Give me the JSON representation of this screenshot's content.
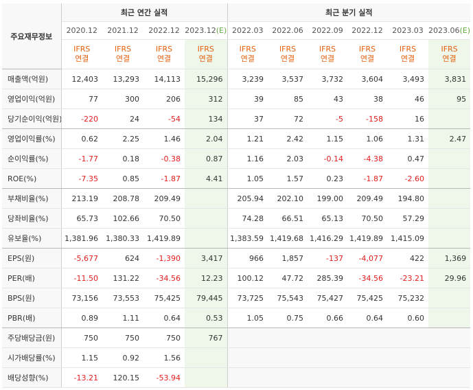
{
  "corner_label": "주요재무정보",
  "groups": {
    "annual": "최근 연간 실적",
    "quarterly": "최근 분기 실적"
  },
  "periods": {
    "annual": [
      "2020.12",
      "2021.12",
      "2022.12",
      "2023.12"
    ],
    "quarterly": [
      "2022.03",
      "2022.06",
      "2022.09",
      "2022.12",
      "2023.03",
      "2023.06"
    ]
  },
  "estimate_mark": "(E)",
  "ifrs_line1": "IFRS",
  "ifrs_line2": "연결",
  "rows": [
    {
      "label": "매출액(억원)",
      "annual": [
        "12,403",
        "13,293",
        "14,113",
        "15,296"
      ],
      "quarterly": [
        "3,239",
        "3,537",
        "3,732",
        "3,604",
        "3,493",
        "3,831"
      ]
    },
    {
      "label": "영업이익(억원)",
      "annual": [
        "77",
        "300",
        "206",
        "312"
      ],
      "quarterly": [
        "39",
        "85",
        "43",
        "38",
        "46",
        "95"
      ]
    },
    {
      "label": "당기순이익(억원)",
      "annual": [
        "-220",
        "24",
        "-54",
        "134"
      ],
      "quarterly": [
        "37",
        "72",
        "-5",
        "-158",
        "16",
        ""
      ]
    },
    {
      "label": "영업이익률(%)",
      "annual": [
        "0.62",
        "2.25",
        "1.46",
        "2.04"
      ],
      "quarterly": [
        "1.21",
        "2.42",
        "1.15",
        "1.06",
        "1.31",
        "2.47"
      ]
    },
    {
      "label": "순이익률(%)",
      "annual": [
        "-1.77",
        "0.18",
        "-0.38",
        "0.87"
      ],
      "quarterly": [
        "1.16",
        "2.03",
        "-0.14",
        "-4.38",
        "0.47",
        ""
      ]
    },
    {
      "label": "ROE(%)",
      "annual": [
        "-7.35",
        "0.85",
        "-1.87",
        "4.41"
      ],
      "quarterly": [
        "1.05",
        "1.57",
        "0.23",
        "-1.87",
        "-2.60",
        ""
      ]
    },
    {
      "label": "부채비율(%)",
      "annual": [
        "213.19",
        "208.78",
        "209.49",
        ""
      ],
      "quarterly": [
        "205.94",
        "202.10",
        "199.00",
        "209.49",
        "194.80",
        ""
      ]
    },
    {
      "label": "당좌비율(%)",
      "annual": [
        "65.73",
        "102.66",
        "70.50",
        ""
      ],
      "quarterly": [
        "74.28",
        "66.51",
        "65.13",
        "70.50",
        "57.29",
        ""
      ]
    },
    {
      "label": "유보율(%)",
      "annual": [
        "1,381.96",
        "1,380.33",
        "1,419.89",
        ""
      ],
      "quarterly": [
        "1,383.59",
        "1,419.68",
        "1,416.29",
        "1,419.89",
        "1,415.09",
        ""
      ]
    },
    {
      "label": "EPS(원)",
      "annual": [
        "-5,677",
        "624",
        "-1,390",
        "3,417"
      ],
      "quarterly": [
        "966",
        "1,857",
        "-137",
        "-4,077",
        "422",
        "1,369"
      ]
    },
    {
      "label": "PER(배)",
      "annual": [
        "-11.50",
        "131.22",
        "-34.56",
        "12.23"
      ],
      "quarterly": [
        "100.12",
        "47.72",
        "285.39",
        "-34.56",
        "-23.21",
        "29.96"
      ]
    },
    {
      "label": "BPS(원)",
      "annual": [
        "73,156",
        "73,553",
        "75,425",
        "79,445"
      ],
      "quarterly": [
        "73,725",
        "75,543",
        "75,427",
        "75,425",
        "75,232",
        ""
      ]
    },
    {
      "label": "PBR(배)",
      "annual": [
        "0.89",
        "1.11",
        "0.64",
        "0.53"
      ],
      "quarterly": [
        "1.05",
        "0.75",
        "0.66",
        "0.64",
        "0.60",
        ""
      ]
    },
    {
      "label": "주당배당금(원)",
      "annual": [
        "750",
        "750",
        "750",
        "767"
      ],
      "quarterly": [
        "",
        "",
        "",
        "",
        "",
        ""
      ]
    },
    {
      "label": "시가배당률(%)",
      "annual": [
        "1.15",
        "0.92",
        "1.56",
        ""
      ],
      "quarterly": [
        "",
        "",
        "",
        "",
        "",
        ""
      ]
    },
    {
      "label": "배당성향(%)",
      "annual": [
        "-13.21",
        "120.15",
        "-53.94",
        ""
      ],
      "quarterly": [
        "",
        "",
        "",
        "",
        "",
        ""
      ]
    }
  ],
  "colors": {
    "negative": "#e31c1c",
    "ifrs": "#e4600e",
    "estimate_bg": "#eef7ea",
    "estimate_mark": "#63a742"
  }
}
